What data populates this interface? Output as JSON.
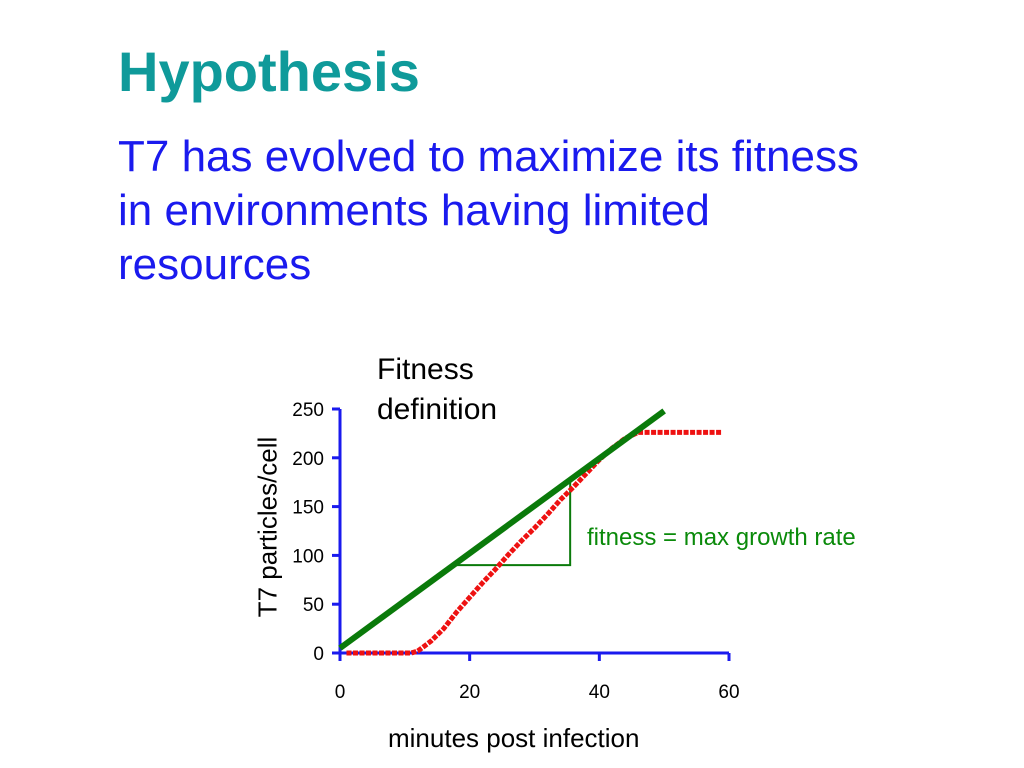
{
  "slide": {
    "title": "Hypothesis",
    "subtitle": "T7 has evolved to maximize its fitness in environments having limited resources",
    "fitness_definition": "Fitness definition",
    "annotation": "fitness = max growth rate"
  },
  "colors": {
    "title": "#0f9a9a",
    "subtitle": "#1a1aee",
    "axis": "#1a1aee",
    "growth_curve": "#ee1111",
    "fitness_line": "#0a7a0a",
    "annotation": "#0a8a0a"
  },
  "chart_data": {
    "type": "line",
    "xlabel": "minutes post infection",
    "ylabel": "T7 particles/cell",
    "xlim": [
      0,
      60
    ],
    "ylim": [
      0,
      250
    ],
    "xticks": [
      0,
      20,
      40,
      60
    ],
    "yticks": [
      0,
      50,
      100,
      150,
      200,
      250
    ],
    "grid": false,
    "series": [
      {
        "style": "dashed-thick",
        "color": "#ee1111",
        "x": [
          1,
          4,
          8,
          11,
          12,
          14,
          16,
          18,
          20,
          22,
          24,
          26,
          28,
          30,
          32,
          34,
          36,
          38,
          40,
          42,
          44,
          46,
          50,
          55,
          59
        ],
        "y": [
          0,
          0,
          0,
          0,
          2,
          12,
          25,
          42,
          57,
          72,
          86,
          101,
          115,
          128,
          142,
          157,
          170,
          184,
          198,
          210,
          220,
          226,
          226,
          226,
          226
        ]
      },
      {
        "style": "solid-thick",
        "color": "#0a7a0a",
        "x": [
          0,
          50
        ],
        "y": [
          5,
          248
        ]
      }
    ],
    "slope_triangle": {
      "x": [
        18,
        35.5
      ],
      "y": [
        90,
        175
      ]
    }
  }
}
